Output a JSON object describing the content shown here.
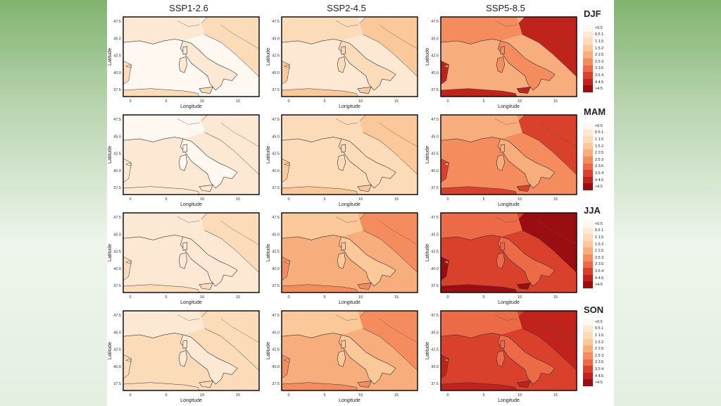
{
  "columns": [
    "SSP1-2.6",
    "SSP2-4.5",
    "SSP5-8.5"
  ],
  "rows": [
    "DJF",
    "MAM",
    "JJA",
    "SON"
  ],
  "axis": {
    "xlabel": "Longitude",
    "ylabel": "Latitude",
    "xticks": [
      "0",
      "5",
      "10",
      "15"
    ],
    "yticks": [
      "37.5",
      "40.0",
      "42.5",
      "45.0",
      "47.5"
    ]
  },
  "legend": {
    "labels": [
      "<0.5",
      "0.5 1",
      "1 1.5",
      "1.5 2",
      "2 2.5",
      "2.5 3",
      "3 3.5",
      "3.5 4",
      "4 4.5",
      ">4.5"
    ],
    "colors": [
      "#fff8f0",
      "#fde9d3",
      "#fcdcb8",
      "#fbc89a",
      "#f8ad7c",
      "#f48c5e",
      "#ec6a45",
      "#d9412d",
      "#c0231c",
      "#9a0d10"
    ]
  },
  "panels": [
    [
      {
        "base": 1,
        "hot": 2,
        "sea": 0
      },
      {
        "base": 2,
        "hot": 3,
        "sea": 1
      },
      {
        "base": 5,
        "hot": 8,
        "sea": 4
      }
    ],
    [
      {
        "base": 0,
        "hot": 1,
        "sea": 1
      },
      {
        "base": 2,
        "hot": 3,
        "sea": 2
      },
      {
        "base": 4,
        "hot": 7,
        "sea": 5
      }
    ],
    [
      {
        "base": 1,
        "hot": 2,
        "sea": 1
      },
      {
        "base": 3,
        "hot": 5,
        "sea": 4
      },
      {
        "base": 6,
        "hot": 9,
        "sea": 7
      }
    ],
    [
      {
        "base": 1,
        "hot": 2,
        "sea": 2
      },
      {
        "base": 3,
        "hot": 5,
        "sea": 4
      },
      {
        "base": 6,
        "hot": 8,
        "sea": 7
      }
    ]
  ]
}
